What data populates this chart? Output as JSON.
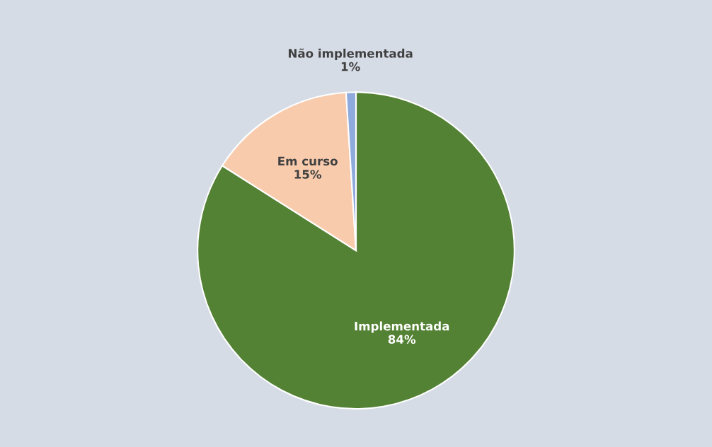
{
  "chart_data": {
    "type": "pie",
    "categories": [
      "Implementada",
      "Em curso",
      "Não implementada"
    ],
    "values": [
      84,
      15,
      1
    ],
    "colors": [
      "#548235",
      "#f8cbad",
      "#8faadc"
    ],
    "value_labels": [
      "84%",
      "15%",
      "1%"
    ]
  }
}
